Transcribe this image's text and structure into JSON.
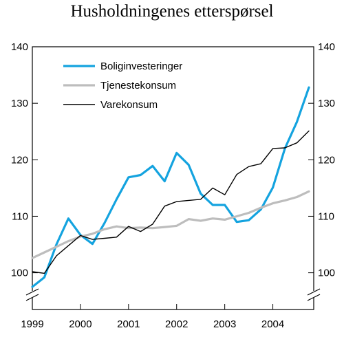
{
  "chart_data": {
    "type": "line",
    "title": "Husholdningenes etterspørsel",
    "xlabel": "",
    "ylabel": "",
    "x_ticks": [
      "1999",
      "2000",
      "2001",
      "2002",
      "2003",
      "2004"
    ],
    "y_ticks": [
      100,
      110,
      120,
      130,
      140
    ],
    "xlim": [
      1999,
      2004.85
    ],
    "ylim": [
      93.5,
      140
    ],
    "axis_break": true,
    "grid": false,
    "legend_position": "top-left",
    "x": [
      1999.0,
      1999.25,
      1999.5,
      1999.75,
      2000.0,
      2000.25,
      2000.5,
      2000.75,
      2001.0,
      2001.25,
      2001.5,
      2001.75,
      2002.0,
      2002.25,
      2002.5,
      2002.75,
      2003.0,
      2003.25,
      2003.5,
      2003.75,
      2004.0,
      2004.25,
      2004.5,
      2004.75
    ],
    "series": [
      {
        "name": "Boliginvesteringer",
        "color": "#14a3df",
        "width": 3.2,
        "values": [
          97.5,
          99.2,
          105.0,
          109.6,
          106.7,
          105.1,
          108.8,
          113.0,
          116.9,
          117.3,
          118.9,
          116.2,
          121.2,
          119.1,
          114.0,
          112.0,
          112.0,
          109.0,
          109.3,
          111.2,
          115.1,
          122.0,
          126.7,
          132.8
        ]
      },
      {
        "name": "Tjenestekonsum",
        "color": "#bdbdbd",
        "width": 3.2,
        "values": [
          102.6,
          103.6,
          104.6,
          105.6,
          106.4,
          106.9,
          107.7,
          108.2,
          107.9,
          108.0,
          107.9,
          108.1,
          108.3,
          109.5,
          109.2,
          109.6,
          109.4,
          110.0,
          110.6,
          111.5,
          112.3,
          112.8,
          113.4,
          114.4
        ]
      },
      {
        "name": "Varekonsum",
        "color": "#000000",
        "width": 1.4,
        "values": [
          100.2,
          99.9,
          103.0,
          104.8,
          106.6,
          105.9,
          106.1,
          106.3,
          108.2,
          107.3,
          108.6,
          111.8,
          112.6,
          112.8,
          113.0,
          115.0,
          113.8,
          117.4,
          118.8,
          119.3,
          122.0,
          122.1,
          123.0,
          125.1
        ]
      }
    ]
  }
}
